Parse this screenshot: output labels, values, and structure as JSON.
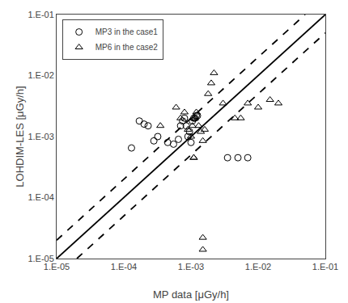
{
  "chart_data": {
    "type": "scatter",
    "xlabel": "MP data [μGy/h]",
    "ylabel": "LOHDIM-LES [μGy/h]",
    "log": true,
    "grid": false,
    "legend": "upper left",
    "xlim": [
      1e-05,
      0.1
    ],
    "ylim": [
      1e-05,
      0.1
    ],
    "xticks": [
      {
        "value": 1e-05,
        "label": "1.E-05"
      },
      {
        "value": 0.0001,
        "label": "1.E-04"
      },
      {
        "value": 0.001,
        "label": "1.E-03"
      },
      {
        "value": 0.01,
        "label": "1.E-02"
      },
      {
        "value": 0.1,
        "label": "1.E-01"
      }
    ],
    "yticks": [
      {
        "value": 1e-05,
        "label": "1.E-05"
      },
      {
        "value": 0.0001,
        "label": "1.E-04"
      },
      {
        "value": 0.001,
        "label": "1.E-03"
      },
      {
        "value": 0.01,
        "label": "1.E-02"
      },
      {
        "value": 0.1,
        "label": "1.E-01"
      }
    ],
    "series": [
      {
        "name": "MP3 in the case1",
        "type": "scatter",
        "marker": "circle-open",
        "color": "black",
        "x": [
          0.00013,
          0.00017,
          0.0002,
          0.00023,
          0.00028,
          0.00032,
          0.00045,
          0.00055,
          0.00065,
          0.0007,
          0.00075,
          0.0008,
          0.00085,
          0.0009,
          0.00095,
          0.001,
          0.00105,
          0.0011,
          0.00115,
          0.0012,
          0.00125,
          0.0035,
          0.005,
          0.007
        ],
        "values": [
          0.00065,
          0.0018,
          0.0016,
          0.0015,
          0.00085,
          0.001,
          0.0008,
          0.00075,
          0.0009,
          0.0015,
          0.0018,
          0.002,
          0.0015,
          0.001,
          0.0012,
          0.0008,
          0.0018,
          0.002,
          0.002,
          0.0022,
          0.0022,
          0.00045,
          0.00045,
          0.00045
        ]
      },
      {
        "name": "MP6 in the case2",
        "type": "scatter",
        "marker": "triangle-up-open",
        "color": "black",
        "x": [
          0.00035,
          0.0006,
          0.0007,
          0.0008,
          0.0009,
          0.001,
          0.00105,
          0.0011,
          0.00115,
          0.0012,
          0.0013,
          0.0014,
          0.0015,
          0.0016,
          0.0018,
          0.002,
          0.0022,
          0.003,
          0.0045,
          0.0055,
          0.007,
          0.01,
          0.015,
          0.02,
          0.0011,
          0.0011,
          0.0015,
          0.0015
        ],
        "values": [
          0.0015,
          0.003,
          0.002,
          0.0025,
          0.0013,
          0.001,
          0.0015,
          0.002,
          0.002,
          0.0025,
          0.0015,
          0.0012,
          0.00085,
          0.0013,
          0.005,
          0.0075,
          0.011,
          0.0035,
          0.002,
          0.002,
          0.0035,
          0.003,
          0.004,
          0.0035,
          0.00045,
          0.00045,
          1.4e-05,
          2.2e-05
        ]
      },
      {
        "type": "line",
        "line_style": "solid",
        "color": "black",
        "x": [
          1e-05,
          0.1
        ],
        "values": [
          1e-05,
          0.1
        ]
      },
      {
        "type": "line",
        "line_style": "dashed",
        "color": "black",
        "x": [
          1e-05,
          0.05
        ],
        "values": [
          2e-05,
          0.1
        ]
      },
      {
        "type": "line",
        "line_style": "dashed",
        "color": "black",
        "x": [
          2e-05,
          0.1
        ],
        "values": [
          1e-05,
          0.05
        ]
      }
    ]
  }
}
